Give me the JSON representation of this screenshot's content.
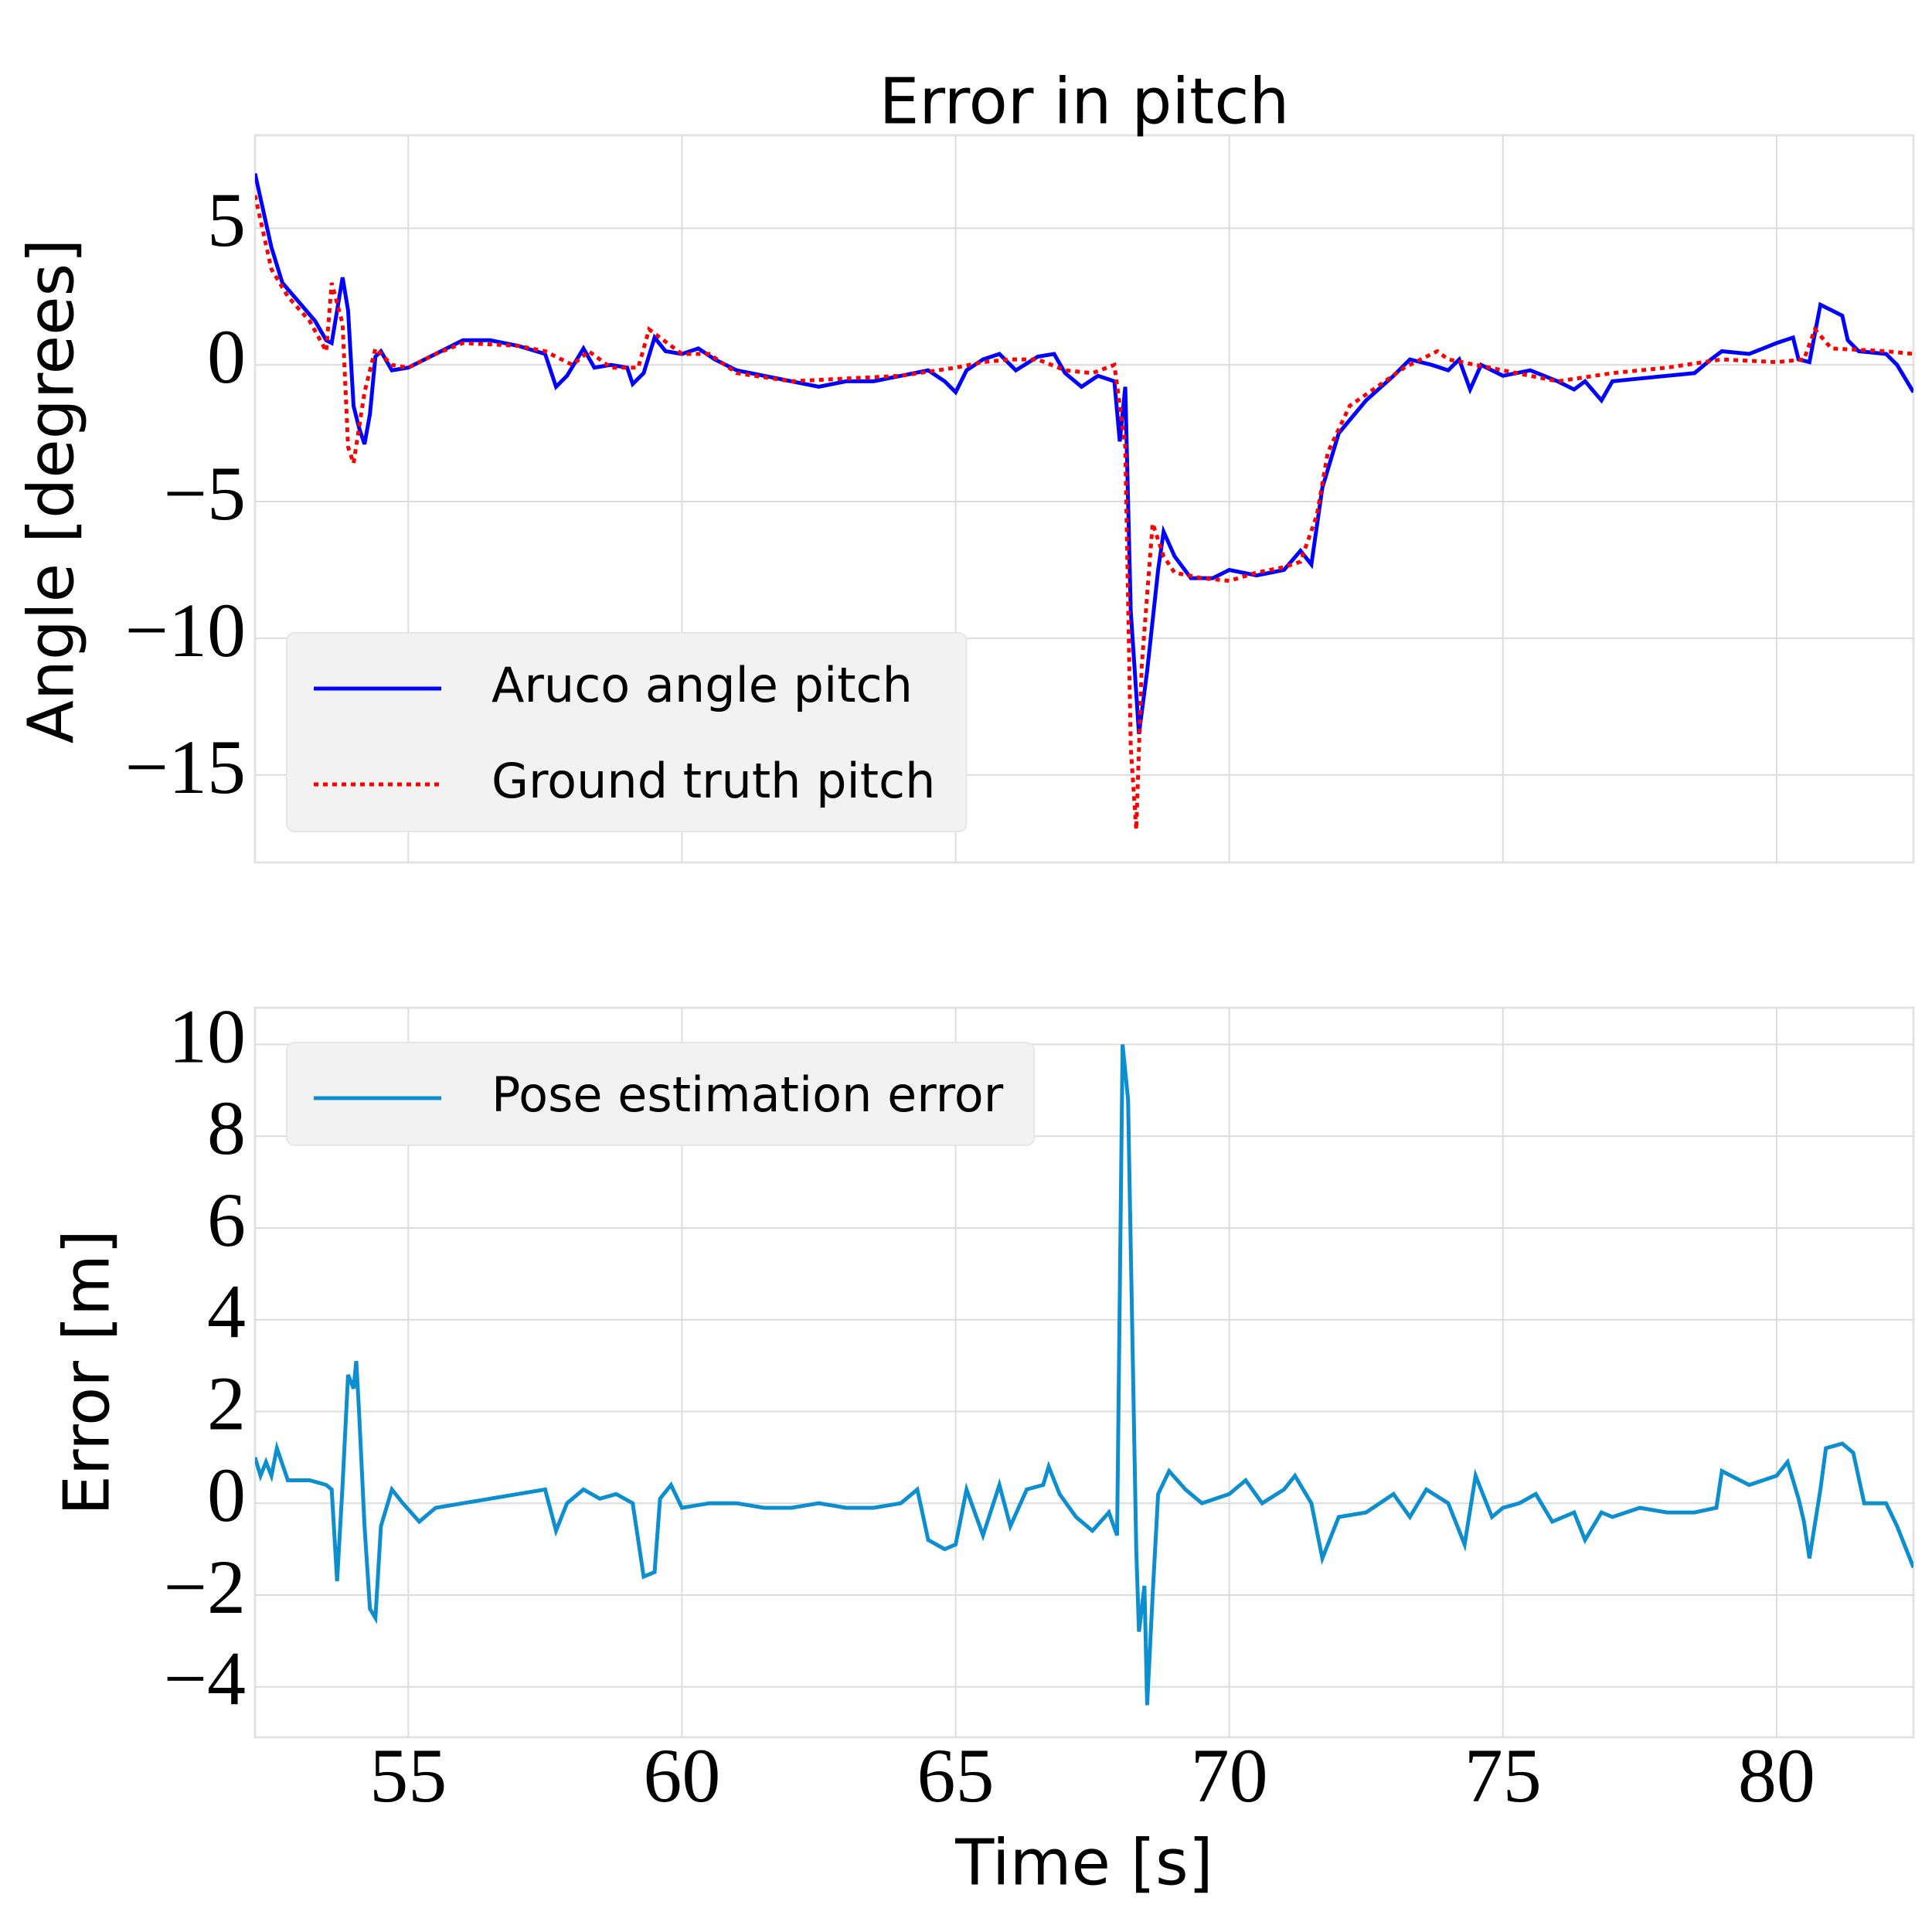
{
  "chart_data": [
    {
      "type": "line",
      "title": "Error in pitch",
      "ylabel": "Angle [degrees]",
      "xlim": [
        52.2,
        82.5
      ],
      "ylim": [
        -18.2,
        8.4
      ],
      "yticks": [
        {
          "value": -15,
          "label": "−15"
        },
        {
          "value": -10,
          "label": "−10"
        },
        {
          "value": -5,
          "label": "−5"
        },
        0,
        5
      ],
      "grid": true,
      "legend": "lower left",
      "series": [
        {
          "name": "Aruco angle pitch",
          "color": "#0000ff",
          "style": "solid",
          "x": [
            52.2,
            52.5,
            52.7,
            53.0,
            53.3,
            53.5,
            53.6,
            53.8,
            53.9,
            54.0,
            54.1,
            54.2,
            54.3,
            54.4,
            54.5,
            54.7,
            55.0,
            55.5,
            56.0,
            56.5,
            57.0,
            57.5,
            57.7,
            57.9,
            58.2,
            58.4,
            58.7,
            59.0,
            59.1,
            59.3,
            59.5,
            59.7,
            60.0,
            60.3,
            60.6,
            61.0,
            61.5,
            62.0,
            62.5,
            63.0,
            63.5,
            64.0,
            64.5,
            64.8,
            65.0,
            65.2,
            65.5,
            65.8,
            66.1,
            66.5,
            66.8,
            67.0,
            67.3,
            67.6,
            67.9,
            68.0,
            68.1,
            68.2,
            68.35,
            68.5,
            68.7,
            68.8,
            69.0,
            69.3,
            69.7,
            70.0,
            70.5,
            71.0,
            71.3,
            71.5,
            71.7,
            72.0,
            72.5,
            73.0,
            73.3,
            73.7,
            74.0,
            74.2,
            74.4,
            74.6,
            75.0,
            75.5,
            76.0,
            76.3,
            76.5,
            76.8,
            77.0,
            77.5,
            78.0,
            78.5,
            78.8,
            79.0,
            79.5,
            80.0,
            80.3,
            80.4,
            80.6,
            80.8,
            81.0,
            81.2,
            81.3,
            81.5,
            82.0,
            82.2,
            82.5
          ],
          "values": [
            7.0,
            4.3,
            3.0,
            2.3,
            1.6,
            0.9,
            0.8,
            3.2,
            2.0,
            -1.5,
            -2.3,
            -2.9,
            -1.8,
            0.3,
            0.5,
            -0.2,
            -0.1,
            0.4,
            0.9,
            0.9,
            0.7,
            0.4,
            -0.8,
            -0.4,
            0.6,
            -0.1,
            0.0,
            -0.1,
            -0.7,
            -0.3,
            1.0,
            0.5,
            0.4,
            0.6,
            0.2,
            -0.2,
            -0.4,
            -0.6,
            -0.8,
            -0.6,
            -0.6,
            -0.4,
            -0.2,
            -0.6,
            -1.0,
            -0.2,
            0.2,
            0.4,
            -0.2,
            0.3,
            0.4,
            -0.3,
            -0.8,
            -0.4,
            -0.6,
            -2.8,
            -0.8,
            -9.0,
            -13.5,
            -11.2,
            -7.5,
            -6.1,
            -7.0,
            -7.8,
            -7.8,
            -7.5,
            -7.7,
            -7.5,
            -6.8,
            -7.3,
            -4.5,
            -2.5,
            -1.3,
            -0.4,
            0.2,
            0.0,
            -0.2,
            0.2,
            -0.9,
            0.0,
            -0.4,
            -0.2,
            -0.6,
            -0.9,
            -0.6,
            -1.3,
            -0.6,
            -0.5,
            -0.4,
            -0.3,
            0.2,
            0.5,
            0.4,
            0.8,
            1.0,
            0.2,
            0.1,
            2.2,
            2.0,
            1.8,
            0.9,
            0.5,
            0.4,
            0.0,
            -1.0
          ]
        },
        {
          "name": "Ground truth pitch",
          "color": "#ff0000",
          "style": "dotted",
          "x": [
            52.2,
            52.5,
            52.8,
            53.2,
            53.5,
            53.6,
            53.8,
            53.9,
            54.0,
            54.2,
            54.4,
            54.7,
            55.0,
            55.5,
            56.0,
            57.0,
            57.5,
            58.0,
            58.3,
            58.7,
            59.2,
            59.4,
            59.6,
            60.0,
            60.5,
            61.0,
            62.0,
            63.0,
            64.0,
            65.0,
            65.5,
            66.0,
            66.5,
            67.0,
            67.5,
            67.9,
            68.1,
            68.2,
            68.3,
            68.4,
            68.6,
            68.8,
            69.0,
            69.5,
            70.0,
            70.5,
            71.0,
            71.3,
            71.6,
            71.8,
            72.2,
            72.7,
            73.2,
            73.8,
            74.0,
            75.0,
            76.0,
            77.0,
            78.0,
            79.0,
            80.0,
            80.5,
            80.7,
            81.0,
            82.0,
            82.5
          ],
          "values": [
            6.2,
            3.5,
            2.5,
            1.6,
            0.5,
            3.0,
            1.5,
            -3.0,
            -3.6,
            -1.0,
            0.6,
            0.0,
            -0.1,
            0.4,
            0.8,
            0.7,
            0.5,
            0.0,
            0.5,
            -0.1,
            -0.1,
            1.3,
            1.0,
            0.4,
            0.4,
            -0.3,
            -0.6,
            -0.5,
            -0.4,
            -0.1,
            0.1,
            0.2,
            0.2,
            -0.2,
            -0.3,
            0.0,
            -3.0,
            -14.0,
            -17.0,
            -11.0,
            -5.8,
            -7.0,
            -7.6,
            -7.8,
            -7.9,
            -7.6,
            -7.4,
            -7.2,
            -5.5,
            -3.2,
            -1.5,
            -0.8,
            -0.1,
            0.5,
            0.2,
            -0.2,
            -0.6,
            -0.3,
            -0.1,
            0.2,
            0.1,
            0.2,
            1.3,
            0.6,
            0.5,
            0.4
          ]
        }
      ]
    },
    {
      "type": "line",
      "ylabel": "Error [m]",
      "xlabel": "Time [s]",
      "xlim": [
        52.2,
        82.5
      ],
      "ylim": [
        -5.1,
        10.8
      ],
      "xticks": [
        55,
        60,
        65,
        70,
        75,
        80
      ],
      "yticks": [
        {
          "value": -4,
          "label": "−4"
        },
        {
          "value": -2,
          "label": "−2"
        },
        0,
        2,
        4,
        6,
        8,
        10
      ],
      "grid": true,
      "legend": "upper left",
      "series": [
        {
          "name": "Pose estimation error",
          "color": "#0d8ecf",
          "style": "solid",
          "x": [
            52.2,
            52.3,
            52.4,
            52.5,
            52.6,
            52.8,
            53.2,
            53.5,
            53.6,
            53.7,
            53.8,
            53.9,
            54.0,
            54.05,
            54.1,
            54.2,
            54.3,
            54.4,
            54.5,
            54.7,
            54.9,
            55.2,
            55.5,
            56.0,
            56.5,
            57.0,
            57.5,
            57.7,
            57.9,
            58.2,
            58.5,
            58.8,
            59.1,
            59.3,
            59.5,
            59.6,
            59.8,
            60.0,
            60.5,
            61.0,
            61.5,
            62.0,
            62.5,
            63.0,
            63.5,
            64.0,
            64.3,
            64.5,
            64.8,
            65.0,
            65.2,
            65.5,
            65.8,
            66.0,
            66.3,
            66.6,
            66.7,
            66.9,
            67.2,
            67.5,
            67.8,
            67.95,
            68.05,
            68.15,
            68.3,
            68.35,
            68.45,
            68.5,
            68.6,
            68.7,
            68.9,
            69.2,
            69.5,
            70.0,
            70.3,
            70.6,
            71.0,
            71.2,
            71.5,
            71.7,
            72.0,
            72.5,
            73.0,
            73.3,
            73.6,
            74.0,
            74.3,
            74.5,
            74.8,
            75.0,
            75.3,
            75.6,
            75.9,
            76.3,
            76.5,
            76.8,
            77.0,
            77.5,
            78.0,
            78.5,
            78.9,
            79.0,
            79.5,
            80.0,
            80.2,
            80.4,
            80.5,
            80.6,
            80.8,
            80.9,
            81.2,
            81.4,
            81.6,
            82.0,
            82.2,
            82.5
          ],
          "values": [
            1.0,
            0.6,
            0.9,
            0.6,
            1.2,
            0.5,
            0.5,
            0.4,
            0.3,
            -1.7,
            0.4,
            2.8,
            2.5,
            3.1,
            2.0,
            -0.5,
            -2.3,
            -2.5,
            -0.5,
            0.3,
            0.0,
            -0.4,
            -0.1,
            0.0,
            0.1,
            0.2,
            0.3,
            -0.6,
            0.0,
            0.3,
            0.1,
            0.2,
            0.0,
            -1.6,
            -1.5,
            0.1,
            0.4,
            -0.1,
            0.0,
            0.0,
            -0.1,
            -0.1,
            0.0,
            -0.1,
            -0.1,
            0.0,
            0.3,
            -0.8,
            -1.0,
            -0.9,
            0.3,
            -0.7,
            0.4,
            -0.5,
            0.3,
            0.4,
            0.8,
            0.2,
            -0.3,
            -0.6,
            -0.2,
            -0.7,
            10.0,
            8.8,
            -1.0,
            -2.8,
            -1.8,
            -4.4,
            -2.0,
            0.2,
            0.7,
            0.3,
            0.0,
            0.2,
            0.5,
            0.0,
            0.3,
            0.6,
            0.0,
            -1.2,
            -0.3,
            -0.2,
            0.2,
            -0.3,
            0.3,
            0.0,
            -0.9,
            0.6,
            -0.3,
            -0.1,
            0.0,
            0.2,
            -0.4,
            -0.2,
            -0.8,
            -0.2,
            -0.3,
            -0.1,
            -0.2,
            -0.2,
            -0.1,
            0.7,
            0.4,
            0.6,
            0.9,
            0.1,
            -0.4,
            -1.2,
            0.3,
            1.2,
            1.3,
            1.1,
            0.0,
            0.0,
            -0.5,
            -1.4
          ]
        }
      ]
    }
  ]
}
